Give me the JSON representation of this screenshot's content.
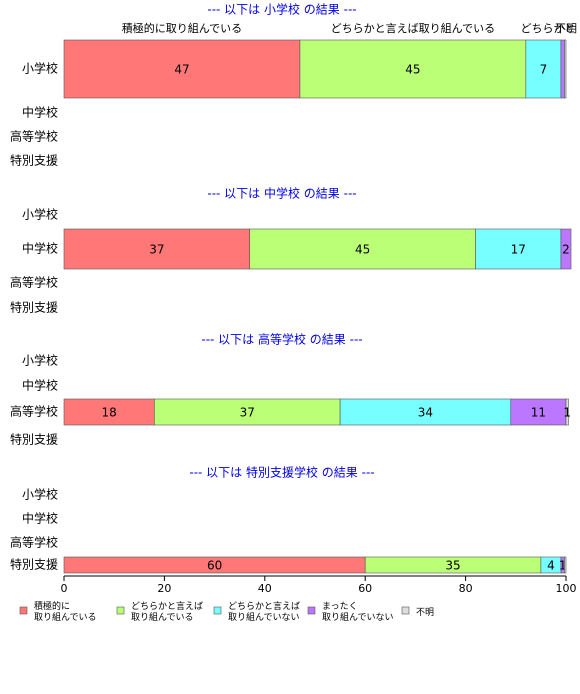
{
  "chart_data": {
    "type": "bar",
    "orientation": "horizontal",
    "stacked": true,
    "xlim": [
      0,
      100
    ],
    "x_ticks": [
      "0",
      "20",
      "40",
      "60",
      "80",
      "100"
    ],
    "categories": [
      "小学校",
      "中学校",
      "高等学校",
      "特別支援"
    ],
    "series": [
      {
        "name": "積極的に\n取り組んでいる",
        "color": "#ff7777"
      },
      {
        "name": "どちらかと言えば\n取り組んでいる",
        "color": "#bbff77"
      },
      {
        "name": "どちらかと言えば\n取り組んでいない",
        "color": "#77ffff"
      },
      {
        "name": "まったく\n取り組んでいない",
        "color": "#bb77ff"
      },
      {
        "name": "不明",
        "color": "#dddddd"
      }
    ],
    "panels": [
      {
        "title": "--- 以下は 小学校 の結果 ---",
        "category_index": 0,
        "values": [
          47,
          45,
          7,
          0.7,
          0.3
        ],
        "labels": [
          "47",
          "45",
          "7",
          "",
          ""
        ]
      },
      {
        "title": "--- 以下は 中学校 の結果 ---",
        "category_index": 1,
        "values": [
          37,
          45,
          17,
          2,
          0
        ],
        "labels": [
          "37",
          "45",
          "17",
          "2",
          ""
        ]
      },
      {
        "title": "--- 以下は 高等学校 の結果 ---",
        "category_index": 2,
        "values": [
          18,
          37,
          34,
          11,
          0.5
        ],
        "labels": [
          "18",
          "37",
          "34",
          "11",
          "1"
        ]
      },
      {
        "title": "--- 以下は 特別支援学校 の結果 ---",
        "category_index": 3,
        "values": [
          60,
          35,
          4,
          0.7,
          0.3
        ],
        "labels": [
          "60",
          "35",
          "4",
          "1",
          ""
        ]
      }
    ],
    "top_labels": [
      "積極的に取り組んでいる",
      "どちらかと言えば取り組んでいる",
      "どちらかと",
      "不明"
    ],
    "legend": [
      "積極的に\n取り組んでいる",
      "どちらかと言えば\n取り組んでいる",
      "どちらかと言えば\n取り組んでいない",
      "まったく\n取り組んでいない",
      "不明"
    ],
    "legend_position": "bottom",
    "grid": false
  }
}
